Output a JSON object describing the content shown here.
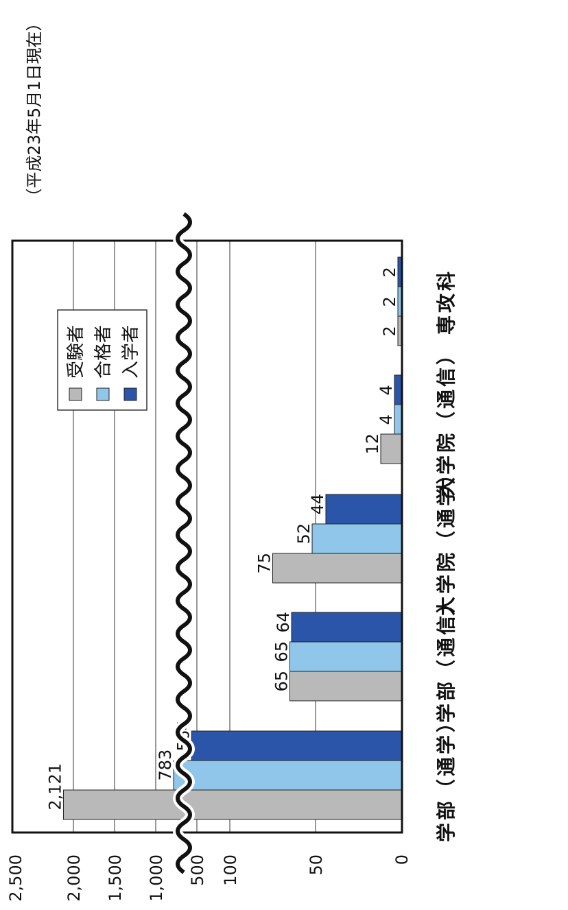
{
  "note": "（平成23年5月1日現在）",
  "colors": {
    "受験者": "#b9b9b9",
    "合格者": "#8fc6ea",
    "入学者": "#2a55a8",
    "frame": "#111111",
    "grid": "#333333"
  },
  "chart_data": {
    "type": "bar",
    "orientation": "horizontal (chart rotated 90° clockwise)",
    "axis_break": "wavy break between 100 and 500",
    "value_axis_ticks": [
      "0",
      "50",
      "100",
      "500",
      "1,000",
      "1,500",
      "2,000",
      "2,500"
    ],
    "categories": [
      "学部（通学）",
      "学部（通信）",
      "大学院（通学）",
      "大学院（通信）",
      "専攻科"
    ],
    "series": [
      {
        "name": "受験者",
        "values": [
          2121,
          65,
          75,
          12,
          2
        ],
        "labels": [
          "2,121",
          "65",
          "75",
          "12",
          "2"
        ]
      },
      {
        "name": "合格者",
        "values": [
          783,
          65,
          52,
          4,
          2
        ],
        "labels": [
          "783",
          "65",
          "52",
          "4",
          "2"
        ]
      },
      {
        "name": "入学者",
        "values": [
          564,
          64,
          44,
          4,
          2
        ],
        "labels": [
          "564",
          "64",
          "44",
          "4",
          "2"
        ]
      }
    ],
    "legend": {
      "position": "inside top",
      "items": [
        "受験者",
        "合格者",
        "入学者"
      ]
    },
    "grid": true
  }
}
